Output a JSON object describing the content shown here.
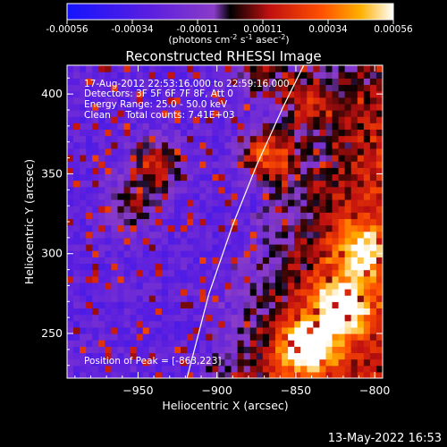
{
  "chart_data": {
    "type": "heatmap",
    "title": "Reconstructed RHESSI Image",
    "xlabel": "Heliocentric X (arcsec)",
    "ylabel": "Heliocentric Y (arcsec)",
    "xlim": [
      -995,
      -795
    ],
    "ylim": [
      222,
      418
    ],
    "x_ticks": [
      -950,
      -900,
      -850,
      -800
    ],
    "y_ticks": [
      250,
      300,
      350,
      400
    ],
    "colorbar": {
      "ticks": [
        "-0.00056",
        "-0.00034",
        "-0.00011",
        "0.00011",
        "0.00034",
        "0.00056"
      ],
      "unit_parts": [
        "(photons cm",
        "-2",
        " s",
        "-1",
        " asec",
        "-2",
        ")"
      ],
      "range": [
        -0.00056,
        0.00056
      ]
    },
    "annotations": [
      "17-Aug-2012 22:53:16.000 to 22:59:16.000",
      "Detectors: 3F 5F 6F 7F 8F, Att 0",
      "Energy Range: 25.0 - 50.0 keV",
      "Clean     Total counts: 7.41E+03"
    ],
    "peak_label": "Position of Peak = [-863,223]",
    "limb_curve": [
      [
        -919,
        222
      ],
      [
        -905,
        275
      ],
      [
        -890,
        318
      ],
      [
        -875,
        355
      ],
      [
        -858,
        392
      ],
      [
        -845,
        418
      ]
    ],
    "image_summary": {
      "description_values": "pixel intensities in photons cm^-2 s^-1 asec^-2",
      "bright_sources": [
        {
          "x": -870,
          "y": 360,
          "value": 0.00045
        },
        {
          "x": -845,
          "y": 395,
          "value": 0.0003
        },
        {
          "x": -940,
          "y": 355,
          "value": 0.0003
        },
        {
          "x": -955,
          "y": 330,
          "value": 0.00022
        },
        {
          "x": -875,
          "y": 415,
          "value": 0.00028
        },
        {
          "x": -822,
          "y": 265,
          "value": 0.00052
        },
        {
          "x": -845,
          "y": 240,
          "value": 0.00056
        },
        {
          "x": -810,
          "y": 300,
          "value": 0.00035
        }
      ]
    }
  },
  "footer_timestamp": "13-May-2022 16:53"
}
